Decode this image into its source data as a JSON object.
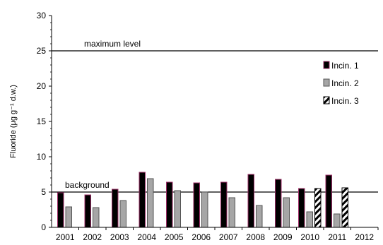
{
  "chart_data": {
    "type": "bar",
    "ylabel": "Fluoride (μg g⁻¹ d.w.)",
    "ylim": [
      0,
      30
    ],
    "yticks": [
      0,
      5,
      10,
      15,
      20,
      25,
      30
    ],
    "categories": [
      "2001",
      "2002",
      "2003",
      "2004",
      "2005",
      "2006",
      "2007",
      "2008",
      "2009",
      "2010",
      "2011",
      "2012"
    ],
    "series": [
      {
        "name": "Incin. 1",
        "values": [
          4.9,
          4.6,
          5.4,
          7.8,
          6.4,
          6.3,
          6.4,
          7.5,
          6.8,
          5.5,
          7.4,
          null
        ],
        "fill": "#000000",
        "stroke": "#a0306a",
        "pattern": "solid"
      },
      {
        "name": "Incin. 2",
        "values": [
          2.9,
          2.8,
          3.8,
          6.9,
          5.2,
          5.0,
          4.2,
          3.1,
          4.2,
          2.2,
          1.9,
          null
        ],
        "fill": "#a6a6a6",
        "stroke": "#555555",
        "pattern": "solid"
      },
      {
        "name": "Incin. 3",
        "values": [
          null,
          null,
          null,
          null,
          null,
          null,
          null,
          null,
          null,
          5.5,
          5.6,
          null
        ],
        "fill": "#ffffff",
        "stroke": "#000000",
        "pattern": "diagonal"
      }
    ],
    "reference_lines": [
      {
        "label": "maximum level",
        "value": 25
      },
      {
        "label": "background",
        "value": 5
      }
    ],
    "legend_position": "right",
    "grid": false
  }
}
